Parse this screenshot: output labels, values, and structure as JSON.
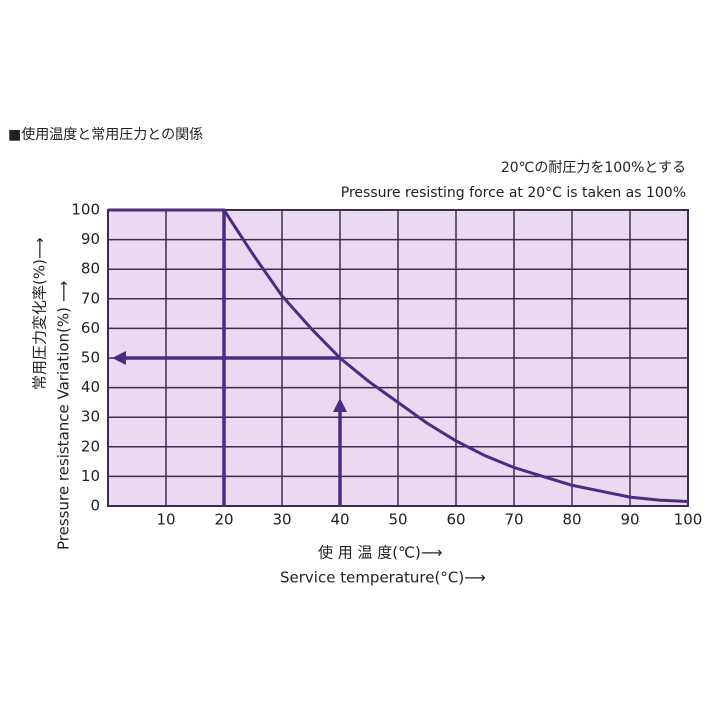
{
  "chart_data": {
    "type": "line",
    "title": "■使用温度と常用圧力との関係",
    "subtitle": [
      "20℃の耐圧力を100%とする",
      "Pressure resisting force at 20°C is taken as 100%"
    ],
    "x_label": [
      "使 用 温 度(℃)⟶",
      "Service temperature(°C)⟶"
    ],
    "y_label": [
      "常用圧力変化率(%)⟶",
      "Pressure resistance Variation(%) ⟶"
    ],
    "x": [
      0,
      20,
      25,
      30,
      35,
      40,
      45,
      50,
      55,
      60,
      65,
      70,
      75,
      80,
      85,
      90,
      95,
      100
    ],
    "values": [
      100,
      100,
      85,
      71,
      60,
      50,
      42,
      35,
      28,
      22,
      17,
      13,
      10,
      7,
      5,
      3,
      2,
      1.5
    ],
    "color": "#4b2c82",
    "xlim": [
      0,
      100
    ],
    "xticks": [
      10,
      20,
      30,
      40,
      50,
      60,
      70,
      80,
      90,
      100
    ],
    "ylim": [
      0,
      100
    ],
    "yticks": [
      0,
      10,
      20,
      30,
      40,
      50,
      60,
      70,
      80,
      90,
      100
    ],
    "grid": true
  }
}
